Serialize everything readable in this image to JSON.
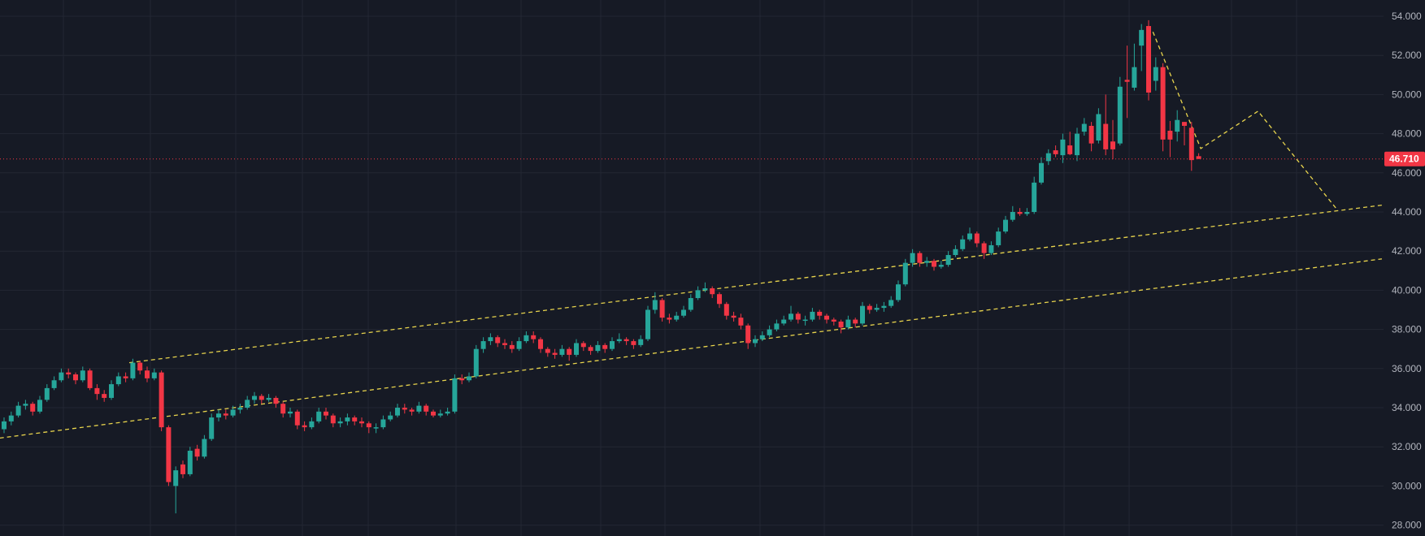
{
  "chart_data": {
    "type": "candlestick",
    "title": "",
    "xlabel": "",
    "ylabel": "",
    "ylim": [
      28,
      54
    ],
    "y_ticks": [
      "28.000",
      "30.000",
      "32.000",
      "34.000",
      "36.000",
      "38.000",
      "40.000",
      "42.000",
      "44.000",
      "46.000",
      "48.000",
      "50.000",
      "52.000",
      "54.000"
    ],
    "grid": true,
    "colors": {
      "background": "#161a25",
      "grid": "#232733",
      "up": "#26a69a",
      "down": "#f23645",
      "drawing": "#e8d44d",
      "last_price": "#f23645",
      "axis_text": "#b2b5be"
    },
    "last_price": {
      "value": 46.71,
      "label": "46.710"
    },
    "ohlc_fields": [
      "open",
      "high",
      "low",
      "close"
    ],
    "ohlc": [
      [
        32.9,
        33.5,
        32.7,
        33.3
      ],
      [
        33.3,
        33.8,
        33.1,
        33.6
      ],
      [
        33.6,
        34.3,
        33.5,
        34.1
      ],
      [
        34.1,
        34.4,
        33.9,
        34.2
      ],
      [
        34.2,
        34.3,
        33.6,
        33.8
      ],
      [
        33.8,
        34.6,
        33.7,
        34.4
      ],
      [
        34.4,
        35.2,
        34.3,
        35.0
      ],
      [
        35.0,
        35.6,
        34.9,
        35.4
      ],
      [
        35.4,
        36.0,
        35.3,
        35.8
      ],
      [
        35.8,
        36.0,
        35.5,
        35.7
      ],
      [
        35.7,
        35.8,
        35.2,
        35.4
      ],
      [
        35.4,
        36.1,
        35.3,
        35.9
      ],
      [
        35.9,
        36.0,
        34.9,
        35.0
      ],
      [
        35.0,
        35.2,
        34.4,
        34.7
      ],
      [
        34.7,
        34.9,
        34.3,
        34.5
      ],
      [
        34.5,
        35.4,
        34.4,
        35.2
      ],
      [
        35.2,
        35.8,
        35.1,
        35.6
      ],
      [
        35.6,
        35.8,
        35.3,
        35.5
      ],
      [
        35.5,
        36.5,
        35.4,
        36.3
      ],
      [
        36.3,
        36.4,
        35.7,
        35.9
      ],
      [
        35.9,
        36.1,
        35.3,
        35.5
      ],
      [
        35.5,
        36.0,
        35.4,
        35.8
      ],
      [
        35.8,
        35.9,
        32.8,
        33.0
      ],
      [
        33.0,
        33.1,
        30.0,
        30.2
      ],
      [
        30.0,
        31.0,
        28.6,
        30.8
      ],
      [
        31.1,
        31.3,
        30.4,
        30.6
      ],
      [
        30.6,
        32.0,
        30.5,
        31.8
      ],
      [
        31.9,
        32.1,
        31.3,
        31.5
      ],
      [
        31.5,
        32.6,
        31.4,
        32.4
      ],
      [
        32.4,
        33.7,
        32.3,
        33.5
      ],
      [
        33.5,
        33.9,
        33.3,
        33.7
      ],
      [
        33.7,
        33.9,
        33.4,
        33.6
      ],
      [
        33.6,
        34.1,
        33.5,
        33.9
      ],
      [
        33.9,
        34.2,
        33.7,
        34.0
      ],
      [
        34.0,
        34.6,
        33.9,
        34.4
      ],
      [
        34.4,
        34.8,
        34.2,
        34.6
      ],
      [
        34.6,
        34.7,
        34.2,
        34.4
      ],
      [
        34.4,
        34.7,
        34.3,
        34.5
      ],
      [
        34.5,
        34.6,
        34.0,
        34.2
      ],
      [
        34.2,
        34.3,
        33.5,
        33.7
      ],
      [
        33.7,
        34.0,
        33.5,
        33.8
      ],
      [
        33.8,
        33.9,
        32.9,
        33.1
      ],
      [
        33.1,
        33.3,
        32.8,
        33.0
      ],
      [
        33.0,
        33.5,
        32.9,
        33.3
      ],
      [
        33.3,
        34.0,
        33.2,
        33.8
      ],
      [
        33.8,
        34.0,
        33.4,
        33.6
      ],
      [
        33.6,
        33.7,
        33.0,
        33.2
      ],
      [
        33.2,
        33.5,
        33.0,
        33.3
      ],
      [
        33.3,
        33.7,
        33.1,
        33.5
      ],
      [
        33.5,
        33.6,
        33.1,
        33.3
      ],
      [
        33.3,
        33.5,
        33.0,
        33.2
      ],
      [
        33.2,
        33.3,
        32.7,
        33.0
      ],
      [
        33.0,
        33.2,
        32.7,
        33.0
      ],
      [
        33.0,
        33.6,
        32.9,
        33.4
      ],
      [
        33.4,
        33.8,
        33.3,
        33.6
      ],
      [
        33.6,
        34.2,
        33.5,
        34.0
      ],
      [
        34.0,
        34.2,
        33.7,
        33.9
      ],
      [
        33.9,
        34.0,
        33.6,
        33.8
      ],
      [
        33.8,
        34.3,
        33.7,
        34.1
      ],
      [
        34.1,
        34.2,
        33.6,
        33.8
      ],
      [
        33.8,
        33.9,
        33.5,
        33.6
      ],
      [
        33.6,
        33.9,
        33.5,
        33.7
      ],
      [
        33.7,
        34.0,
        33.6,
        33.8
      ],
      [
        33.8,
        35.7,
        33.7,
        35.5
      ],
      [
        35.5,
        35.7,
        35.2,
        35.4
      ],
      [
        35.4,
        35.8,
        35.3,
        35.6
      ],
      [
        35.6,
        37.2,
        35.5,
        37.0
      ],
      [
        37.0,
        37.6,
        36.8,
        37.4
      ],
      [
        37.4,
        37.8,
        37.2,
        37.6
      ],
      [
        37.6,
        37.7,
        37.1,
        37.3
      ],
      [
        37.3,
        37.5,
        37.0,
        37.2
      ],
      [
        37.2,
        37.4,
        36.8,
        37.0
      ],
      [
        37.0,
        37.6,
        36.9,
        37.4
      ],
      [
        37.4,
        37.9,
        37.3,
        37.7
      ],
      [
        37.7,
        37.9,
        37.3,
        37.5
      ],
      [
        37.5,
        37.6,
        36.8,
        37.0
      ],
      [
        37.0,
        37.1,
        36.6,
        36.8
      ],
      [
        36.8,
        37.0,
        36.5,
        36.7
      ],
      [
        36.7,
        37.2,
        36.6,
        37.0
      ],
      [
        37.0,
        37.1,
        36.4,
        36.7
      ],
      [
        36.7,
        37.5,
        36.6,
        37.3
      ],
      [
        37.3,
        37.4,
        36.9,
        37.1
      ],
      [
        37.1,
        37.2,
        36.7,
        36.9
      ],
      [
        36.9,
        37.4,
        36.8,
        37.2
      ],
      [
        37.2,
        37.3,
        36.8,
        37.0
      ],
      [
        37.0,
        37.6,
        36.9,
        37.4
      ],
      [
        37.4,
        37.8,
        37.3,
        37.5
      ],
      [
        37.5,
        37.6,
        37.2,
        37.4
      ],
      [
        37.4,
        37.5,
        37.0,
        37.2
      ],
      [
        37.2,
        37.7,
        37.1,
        37.5
      ],
      [
        37.5,
        39.2,
        37.4,
        39.0
      ],
      [
        39.0,
        39.9,
        38.8,
        39.5
      ],
      [
        39.5,
        39.6,
        38.4,
        38.6
      ],
      [
        38.6,
        38.8,
        38.3,
        38.5
      ],
      [
        38.5,
        38.9,
        38.4,
        38.7
      ],
      [
        38.7,
        39.2,
        38.6,
        39.0
      ],
      [
        39.0,
        39.8,
        38.9,
        39.6
      ],
      [
        39.6,
        40.2,
        39.5,
        40.0
      ],
      [
        40.0,
        40.4,
        39.9,
        40.1
      ],
      [
        40.1,
        40.2,
        39.6,
        39.8
      ],
      [
        39.8,
        39.9,
        39.1,
        39.3
      ],
      [
        39.3,
        39.4,
        38.5,
        38.7
      ],
      [
        38.7,
        38.9,
        38.4,
        38.6
      ],
      [
        38.6,
        38.8,
        38.0,
        38.2
      ],
      [
        38.2,
        38.3,
        37.0,
        37.3
      ],
      [
        37.3,
        37.7,
        37.1,
        37.5
      ],
      [
        37.5,
        37.9,
        37.4,
        37.7
      ],
      [
        37.7,
        38.2,
        37.6,
        38.0
      ],
      [
        38.0,
        38.5,
        37.9,
        38.3
      ],
      [
        38.3,
        38.7,
        38.2,
        38.5
      ],
      [
        38.5,
        39.2,
        38.4,
        38.8
      ],
      [
        38.8,
        38.9,
        38.3,
        38.5
      ],
      [
        38.5,
        38.7,
        38.2,
        38.5
      ],
      [
        38.5,
        39.1,
        38.4,
        38.9
      ],
      [
        38.9,
        39.0,
        38.5,
        38.7
      ],
      [
        38.7,
        38.8,
        38.3,
        38.5
      ],
      [
        38.5,
        38.6,
        38.2,
        38.4
      ],
      [
        38.4,
        38.5,
        37.8,
        38.1
      ],
      [
        38.1,
        38.7,
        38.0,
        38.5
      ],
      [
        38.5,
        38.6,
        38.1,
        38.3
      ],
      [
        38.3,
        39.4,
        38.2,
        39.2
      ],
      [
        39.2,
        39.3,
        38.8,
        39.0
      ],
      [
        39.0,
        39.3,
        38.9,
        39.1
      ],
      [
        39.1,
        39.4,
        38.9,
        39.2
      ],
      [
        39.2,
        39.7,
        39.1,
        39.5
      ],
      [
        39.5,
        40.5,
        39.4,
        40.3
      ],
      [
        40.3,
        41.6,
        40.2,
        41.4
      ],
      [
        41.4,
        42.1,
        41.2,
        41.9
      ],
      [
        41.9,
        42.0,
        41.2,
        41.4
      ],
      [
        41.4,
        41.7,
        41.2,
        41.5
      ],
      [
        41.5,
        41.6,
        41.0,
        41.2
      ],
      [
        41.2,
        41.5,
        41.1,
        41.3
      ],
      [
        41.3,
        42.0,
        41.2,
        41.8
      ],
      [
        41.8,
        42.3,
        41.7,
        42.1
      ],
      [
        42.1,
        42.8,
        42.0,
        42.6
      ],
      [
        42.6,
        43.2,
        42.5,
        42.9
      ],
      [
        42.9,
        43.0,
        42.2,
        42.4
      ],
      [
        42.4,
        42.5,
        41.6,
        41.9
      ],
      [
        41.9,
        42.5,
        41.8,
        42.3
      ],
      [
        42.3,
        43.2,
        42.2,
        43.0
      ],
      [
        43.0,
        43.8,
        42.9,
        43.6
      ],
      [
        43.6,
        44.3,
        43.5,
        44.0
      ],
      [
        44.0,
        44.2,
        43.8,
        43.9
      ],
      [
        43.9,
        44.2,
        43.8,
        44.0
      ],
      [
        44.0,
        45.8,
        43.9,
        45.5
      ],
      [
        45.5,
        46.8,
        45.4,
        46.5
      ],
      [
        46.6,
        47.2,
        46.4,
        47.0
      ],
      [
        47.15,
        47.4,
        46.8,
        46.95
      ],
      [
        46.9,
        48.0,
        46.5,
        47.7
      ],
      [
        47.4,
        48.1,
        46.9,
        46.95
      ],
      [
        46.9,
        48.3,
        46.6,
        48.0
      ],
      [
        48.1,
        48.8,
        47.9,
        48.5
      ],
      [
        48.4,
        48.6,
        47.1,
        47.5
      ],
      [
        47.65,
        49.3,
        47.5,
        49.0
      ],
      [
        48.5,
        50.0,
        46.9,
        47.2
      ],
      [
        47.6,
        48.7,
        46.7,
        47.2
      ],
      [
        47.5,
        50.9,
        47.4,
        50.4
      ],
      [
        50.75,
        52.5,
        48.8,
        50.65
      ],
      [
        50.35,
        52.6,
        50.2,
        51.4
      ],
      [
        52.5,
        53.6,
        51.2,
        53.3
      ],
      [
        53.5,
        53.8,
        49.7,
        50.1
      ],
      [
        50.7,
        51.9,
        50.2,
        51.4
      ],
      [
        51.4,
        51.6,
        47.1,
        47.7
      ],
      [
        48.15,
        48.65,
        46.8,
        47.7
      ],
      [
        48.1,
        49.2,
        47.6,
        48.7
      ],
      [
        48.6,
        48.6,
        47.4,
        48.4
      ],
      [
        48.3,
        48.6,
        46.1,
        46.65
      ],
      [
        46.85,
        47.0,
        46.7,
        46.71
      ]
    ],
    "drawings": [
      {
        "kind": "trend-line",
        "style": "dashed",
        "points_bar_price": [
          [
            17.5,
            36.3
          ],
          [
            192.6,
            44.35
          ]
        ]
      },
      {
        "kind": "trend-line",
        "style": "dashed",
        "points_bar_price": [
          [
            -0.6,
            32.45
          ],
          [
            192.6,
            41.6
          ]
        ]
      },
      {
        "kind": "path-projection",
        "style": "dashed",
        "points_bar_price": [
          [
            160.6,
            53.2
          ],
          [
            167.3,
            47.24
          ],
          [
            175.3,
            49.15
          ],
          [
            186.4,
            44.1
          ]
        ]
      }
    ]
  }
}
